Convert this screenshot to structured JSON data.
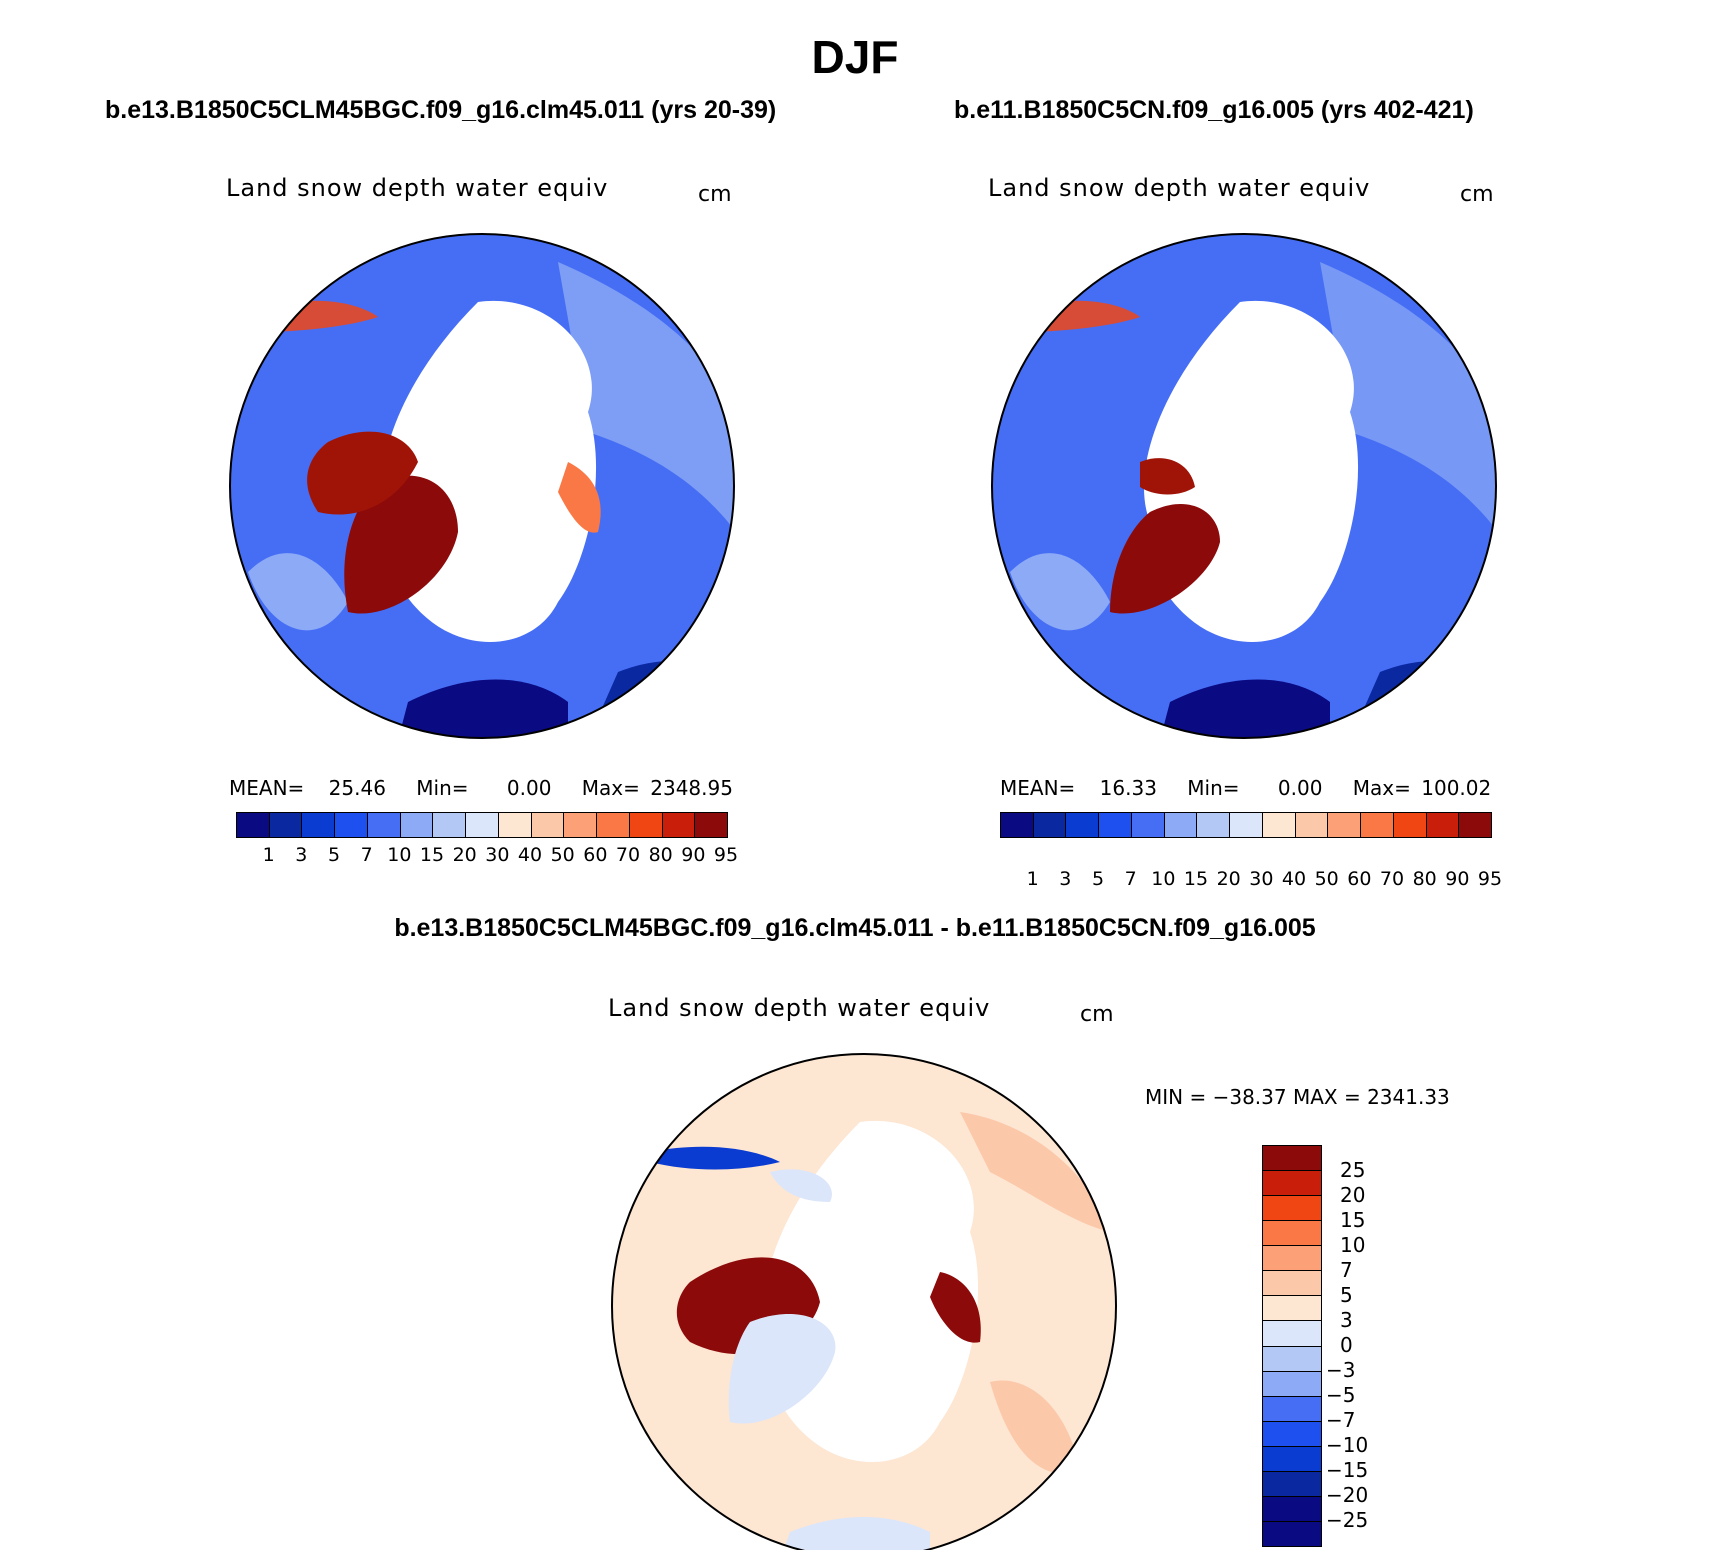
{
  "title": "DJF",
  "panels": [
    {
      "case": "b.e13.B1850C5CLM45BGC.f09_g16.clm45.011 (yrs 20-39)",
      "variable": "Land snow depth water equiv",
      "units": "cm",
      "mean_label": "MEAN=",
      "mean": "25.46",
      "min_label": "Min=",
      "min": "0.00",
      "max_label": "Max=",
      "max": "2348.95"
    },
    {
      "case": "b.e11.B1850C5CN.f09_g16.005 (yrs 402-421)",
      "variable": "Land snow depth water equiv",
      "units": "cm",
      "mean_label": "MEAN=",
      "mean": "16.33",
      "min_label": "Min=",
      "min": "0.00",
      "max_label": "Max=",
      "max": "100.02"
    }
  ],
  "difference": {
    "title": "b.e13.B1850C5CLM45BGC.f09_g16.clm45.011 - b.e11.B1850C5CN.f09_g16.005",
    "variable": "Land snow depth water equiv",
    "units": "cm",
    "minmax": "MIN = −38.37 MAX = 2341.33"
  },
  "colorbar_levels": [
    "1",
    "3",
    "5",
    "7",
    "10",
    "15",
    "20",
    "30",
    "40",
    "50",
    "60",
    "70",
    "80",
    "90",
    "95"
  ],
  "colorbar_colors": [
    "#0a0a82",
    "#0a28a0",
    "#0a3cd2",
    "#1e50f0",
    "#466ef5",
    "#8caaf5",
    "#b4c8f5",
    "#dce6fa",
    "#fde6d2",
    "#fcc8aa",
    "#fca078",
    "#fa7846",
    "#f04614",
    "#c81e0a",
    "#8c0a0a"
  ],
  "diff_levels": [
    "25",
    "20",
    "15",
    "10",
    "7",
    "5",
    "3",
    "0",
    "−3",
    "−5",
    "−7",
    "−10",
    "−15",
    "−20",
    "−25"
  ],
  "diff_colors": [
    "#8c0a0a",
    "#c81e0a",
    "#f04614",
    "#fa7846",
    "#fca078",
    "#fcc8aa",
    "#fde6d2",
    "#dce6fa",
    "#b4c8f5",
    "#8caaf5",
    "#466ef5",
    "#1e50f0",
    "#0a3cd2",
    "#0a28a0",
    "#0a0a82",
    "#0a0a82"
  ]
}
